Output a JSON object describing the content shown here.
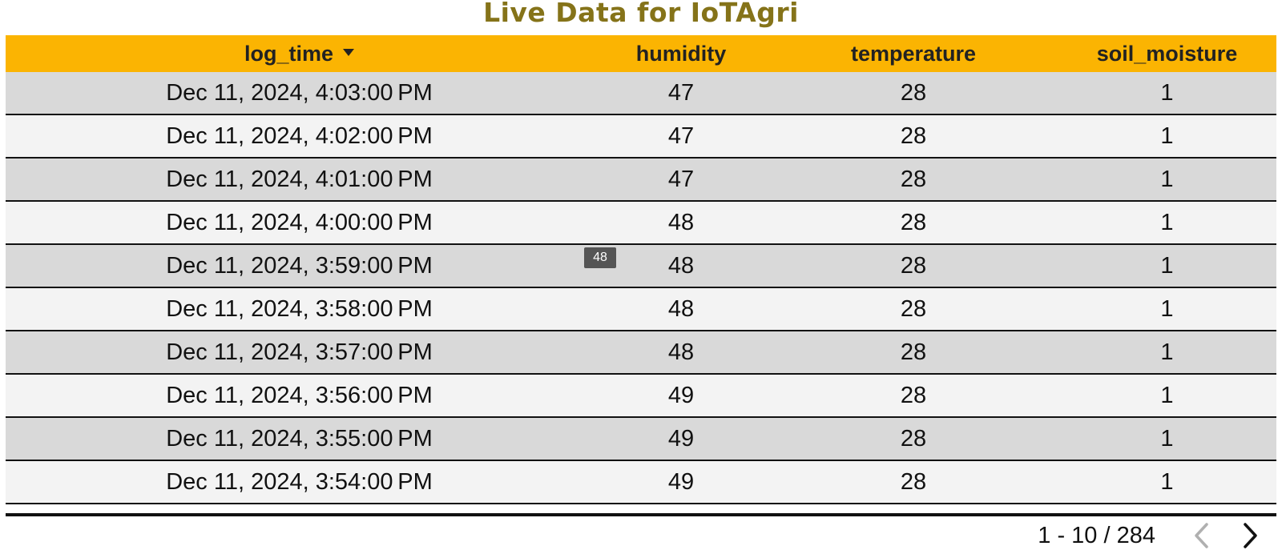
{
  "title": "Live Data for IoTAgri",
  "title_color": "#857319",
  "header_color": "#fbb402",
  "columns": [
    "log_time",
    "humidity",
    "temperature",
    "soil_moisture"
  ],
  "sort_icon": "sort-descending-icon",
  "rows": [
    [
      "Dec 11, 2024, 4:03:00 PM",
      "47",
      "28",
      "1"
    ],
    [
      "Dec 11, 2024, 4:02:00 PM",
      "47",
      "28",
      "1"
    ],
    [
      "Dec 11, 2024, 4:01:00 PM",
      "47",
      "28",
      "1"
    ],
    [
      "Dec 11, 2024, 4:00:00 PM",
      "48",
      "28",
      "1"
    ],
    [
      "Dec 11, 2024, 3:59:00 PM",
      "48",
      "28",
      "1"
    ],
    [
      "Dec 11, 2024, 3:58:00 PM",
      "48",
      "28",
      "1"
    ],
    [
      "Dec 11, 2024, 3:57:00 PM",
      "48",
      "28",
      "1"
    ],
    [
      "Dec 11, 2024, 3:56:00 PM",
      "49",
      "28",
      "1"
    ],
    [
      "Dec 11, 2024, 3:55:00 PM",
      "49",
      "28",
      "1"
    ],
    [
      "Dec 11, 2024, 3:54:00 PM",
      "49",
      "28",
      "1"
    ]
  ],
  "tooltip": "48",
  "pagination": {
    "range": "1 - 10 / 284",
    "prev_icon": "chevron-left-icon",
    "next_icon": "chevron-right-icon"
  }
}
